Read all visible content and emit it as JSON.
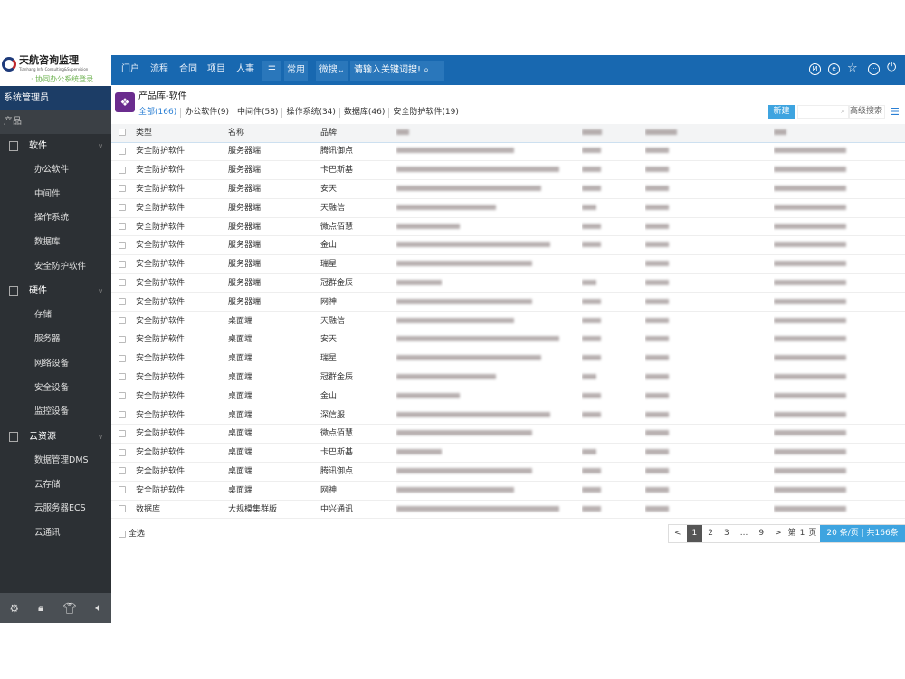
{
  "logo": {
    "name": "天航咨询监理",
    "en": "Tianhang Info Consulting&Supervision",
    "sub": "· 协同办公系统登录"
  },
  "topnav": {
    "items": [
      "门户",
      "流程",
      "合同",
      "项目",
      "人事"
    ],
    "menu_icon": "☰",
    "common": "常用",
    "weisou": "微搜",
    "search_placeholder": "请输入关键词搜!",
    "icons": [
      "m-icon",
      "e-icon",
      "star-icon",
      "more-icon",
      "power-icon"
    ]
  },
  "sidebar": {
    "user": "系统管理员",
    "product": "产品",
    "groups": [
      {
        "label": "软件",
        "items": [
          "办公软件",
          "中间件",
          "操作系统",
          "数据库",
          "安全防护软件"
        ]
      },
      {
        "label": "硬件",
        "items": [
          "存储",
          "服务器",
          "网络设备",
          "安全设备",
          "监控设备"
        ]
      },
      {
        "label": "云资源",
        "items": [
          "数据管理DMS",
          "云存储",
          "云服务器ECS",
          "云通讯"
        ]
      }
    ]
  },
  "page": {
    "title": "产品库-软件",
    "tabs": [
      "全部(166)",
      "办公软件(9)",
      "中间件(58)",
      "操作系统(34)",
      "数据库(46)",
      "安全防护软件(19)"
    ],
    "new_label": "新建",
    "adv_search": "高级搜索"
  },
  "table": {
    "headers": [
      "类型",
      "名称",
      "品牌"
    ],
    "rows": [
      [
        "安全防护软件",
        "服务器端",
        "腾讯御点"
      ],
      [
        "安全防护软件",
        "服务器端",
        "卡巴斯基"
      ],
      [
        "安全防护软件",
        "服务器端",
        "安天"
      ],
      [
        "安全防护软件",
        "服务器端",
        "天融信"
      ],
      [
        "安全防护软件",
        "服务器端",
        "微点佰慧"
      ],
      [
        "安全防护软件",
        "服务器端",
        "金山"
      ],
      [
        "安全防护软件",
        "服务器端",
        "瑞星"
      ],
      [
        "安全防护软件",
        "服务器端",
        "冠群金辰"
      ],
      [
        "安全防护软件",
        "服务器端",
        "网神"
      ],
      [
        "安全防护软件",
        "桌面端",
        "天融信"
      ],
      [
        "安全防护软件",
        "桌面端",
        "安天"
      ],
      [
        "安全防护软件",
        "桌面端",
        "瑞星"
      ],
      [
        "安全防护软件",
        "桌面端",
        "冠群金辰"
      ],
      [
        "安全防护软件",
        "桌面端",
        "金山"
      ],
      [
        "安全防护软件",
        "桌面端",
        "深信服"
      ],
      [
        "安全防护软件",
        "桌面端",
        "微点佰慧"
      ],
      [
        "安全防护软件",
        "桌面端",
        "卡巴斯基"
      ],
      [
        "安全防护软件",
        "桌面端",
        "腾讯御点"
      ],
      [
        "安全防护软件",
        "桌面端",
        "网神"
      ],
      [
        "数据库",
        "大规模集群版",
        "中兴通讯"
      ]
    ]
  },
  "footer": {
    "select_all": "全选",
    "pages": [
      "<",
      "1",
      "2",
      "3",
      "...",
      "9",
      ">"
    ],
    "goto_prefix": "第",
    "goto_page": "1",
    "goto_suffix": "页",
    "info": "20 条/页 | 共166条"
  }
}
